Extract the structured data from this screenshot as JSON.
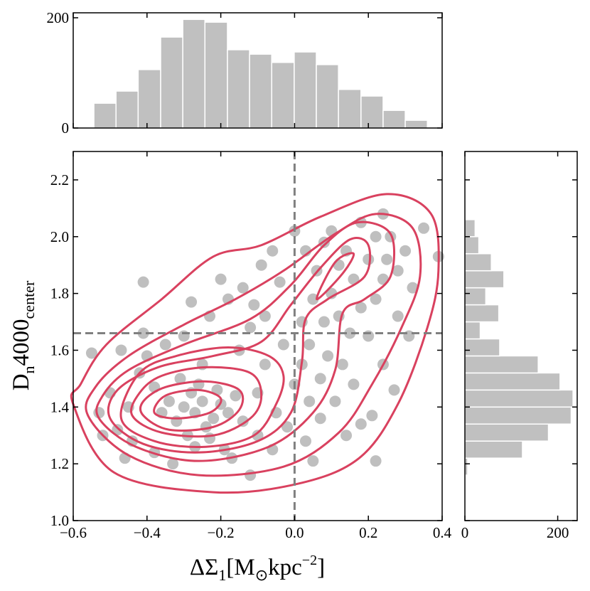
{
  "chart_data": {
    "type": "scatter",
    "xlabel": [
      {
        "text": "ΔΣ"
      },
      {
        "text": "1",
        "sub": true
      },
      {
        "text": "[M"
      },
      {
        "text": "⊙",
        "sub": true
      },
      {
        "text": "kpc"
      },
      {
        "text": "−2",
        "sup": true
      },
      {
        "text": "]"
      }
    ],
    "ylabel": [
      {
        "text": "D"
      },
      {
        "text": "n",
        "sub": true
      },
      {
        "text": "4000"
      },
      {
        "text": "center",
        "sub": true
      }
    ],
    "xlim": [
      -0.6,
      0.4
    ],
    "ylim": [
      1.0,
      2.3
    ],
    "xticks": [
      {
        "value": -0.6,
        "label": "−0.6"
      },
      {
        "value": -0.4,
        "label": "−0.4"
      },
      {
        "value": -0.2,
        "label": "−0.2"
      },
      {
        "value": 0,
        "label": "0.0"
      },
      0.2,
      0.4
    ],
    "yticks": [
      {
        "value": 1.0,
        "label": "1.0"
      },
      1.2,
      1.4,
      1.6,
      1.8,
      {
        "value": 2.0,
        "label": "2.0"
      },
      2.2
    ],
    "color": "#bfbfbf",
    "x": [
      -0.3,
      -0.27,
      -0.25,
      -0.22,
      -0.28,
      -0.32,
      -0.2,
      -0.24,
      -0.34,
      -0.18,
      -0.26,
      -0.29,
      -0.21,
      -0.36,
      -0.23,
      -0.31,
      -0.16,
      -0.38,
      -0.27,
      -0.14,
      -0.45,
      -0.48,
      -0.42,
      -0.5,
      -0.44,
      -0.53,
      -0.4,
      -0.47,
      -0.41,
      -0.38,
      -0.35,
      -0.55,
      -0.52,
      -0.46,
      -0.41,
      -0.33,
      -0.3,
      -0.25,
      -0.19,
      -0.17,
      -0.12,
      -0.1,
      -0.1,
      -0.08,
      -0.05,
      -0.03,
      -0.06,
      0.0,
      0.02,
      -0.02,
      0.04,
      0.05,
      0.03,
      0.07,
      -0.12,
      -0.08,
      -0.15,
      -0.18,
      -0.23,
      -0.28,
      -0.2,
      -0.14,
      -0.09,
      -0.04,
      -0.11,
      -0.06,
      0.0,
      0.03,
      0.06,
      0.08,
      0.1,
      0.12,
      0.14,
      0.16,
      0.18,
      0.2,
      0.22,
      0.24,
      0.26,
      0.25,
      0.28,
      0.3,
      0.35,
      0.39,
      0.05,
      0.08,
      0.1,
      0.12,
      0.15,
      0.18,
      0.2,
      0.22,
      0.24,
      0.28,
      0.31,
      0.32,
      0.02,
      0.04,
      0.09,
      0.13,
      0.16,
      0.18,
      0.21,
      0.22,
      0.27,
      0.24,
      0.11,
      0.07,
      0.14
    ],
    "y": [
      1.4,
      1.38,
      1.42,
      1.36,
      1.45,
      1.35,
      1.41,
      1.33,
      1.42,
      1.38,
      1.48,
      1.3,
      1.46,
      1.38,
      1.29,
      1.5,
      1.44,
      1.47,
      1.26,
      1.35,
      1.4,
      1.32,
      1.52,
      1.45,
      1.28,
      1.38,
      1.58,
      1.6,
      1.66,
      1.24,
      1.62,
      1.59,
      1.3,
      1.22,
      1.84,
      1.2,
      1.65,
      1.55,
      1.25,
      1.22,
      1.16,
      1.3,
      1.45,
      1.55,
      1.38,
      1.62,
      1.25,
      1.48,
      1.55,
      1.33,
      1.42,
      1.21,
      1.28,
      1.5,
      1.68,
      1.72,
      1.6,
      1.78,
      1.72,
      1.77,
      1.85,
      1.82,
      1.9,
      1.84,
      1.76,
      1.95,
      2.02,
      1.95,
      1.88,
      1.98,
      2.02,
      1.9,
      1.95,
      1.85,
      2.05,
      1.92,
      2.0,
      2.08,
      2.0,
      1.92,
      1.88,
      1.95,
      2.03,
      1.93,
      1.78,
      1.7,
      1.8,
      1.72,
      1.66,
      1.75,
      1.65,
      1.78,
      1.85,
      1.72,
      1.65,
      1.82,
      1.7,
      1.62,
      1.58,
      1.55,
      1.48,
      1.34,
      1.37,
      1.21,
      1.46,
      1.55,
      1.42,
      1.36,
      1.3
    ],
    "contour_color": "#d9415f",
    "contours": [
      {
        "x": [
          -0.6,
          -0.49,
          -0.22,
          0.01,
          0.175,
          0.28,
          0.36,
          0.39,
          0.37,
          0.25,
          0.07,
          -0.09,
          -0.22,
          -0.36,
          -0.51,
          -0.58
        ],
        "y": [
          1.41,
          1.17,
          1.1,
          1.13,
          1.22,
          1.41,
          1.68,
          1.88,
          2.08,
          2.15,
          2.07,
          1.97,
          1.93,
          1.78,
          1.62,
          1.48
        ]
      },
      {
        "x": [
          -0.56,
          -0.45,
          -0.26,
          -0.03,
          0.12,
          0.21,
          0.29,
          0.34,
          0.32,
          0.22,
          0.11,
          -0.03,
          -0.16,
          -0.3,
          -0.45,
          -0.54
        ],
        "y": [
          1.37,
          1.23,
          1.16,
          1.19,
          1.31,
          1.48,
          1.68,
          1.86,
          2.03,
          2.08,
          2.01,
          1.88,
          1.78,
          1.69,
          1.58,
          1.47
        ]
      },
      {
        "x": [
          -0.53,
          -0.43,
          -0.26,
          -0.07,
          0.05,
          0.11,
          0.13,
          0.19,
          0.26,
          0.26,
          0.17,
          0.08,
          -0.01,
          -0.12,
          -0.3,
          -0.45,
          -0.52
        ],
        "y": [
          1.36,
          1.26,
          1.21,
          1.26,
          1.38,
          1.53,
          1.73,
          1.78,
          1.86,
          2.01,
          2.05,
          1.97,
          1.83,
          1.71,
          1.62,
          1.53,
          1.44
        ]
      },
      {
        "x": [
          -0.5,
          -0.41,
          -0.26,
          -0.1,
          -0.01,
          0.02,
          0.03,
          0.09,
          0.19,
          0.2,
          0.15,
          0.07,
          -0.01,
          -0.09,
          -0.22,
          -0.37,
          -0.48
        ],
        "y": [
          1.36,
          1.27,
          1.24,
          1.28,
          1.38,
          1.56,
          1.71,
          1.78,
          1.86,
          1.97,
          1.99,
          1.89,
          1.76,
          1.63,
          1.58,
          1.54,
          1.46
        ]
      },
      {
        "x": [
          -0.47,
          -0.38,
          -0.24,
          -0.11,
          -0.05,
          -0.03,
          -0.07,
          -0.18,
          -0.32,
          -0.42
        ],
        "y": [
          1.36,
          1.28,
          1.26,
          1.3,
          1.41,
          1.51,
          1.58,
          1.61,
          1.58,
          1.52
        ]
      },
      {
        "x": [
          0.06,
          0.11,
          0.16,
          0.13
        ],
        "y": [
          1.78,
          1.91,
          1.94,
          1.87
        ]
      },
      {
        "x": [
          -0.44,
          -0.36,
          -0.22,
          -0.12,
          -0.09,
          -0.12,
          -0.24,
          -0.36,
          -0.42
        ],
        "y": [
          1.37,
          1.31,
          1.3,
          1.36,
          1.44,
          1.52,
          1.54,
          1.51,
          1.45
        ]
      },
      {
        "x": [
          -0.41,
          -0.34,
          -0.22,
          -0.15,
          -0.15,
          -0.24,
          -0.35,
          -0.41
        ],
        "y": [
          1.37,
          1.32,
          1.33,
          1.39,
          1.46,
          1.49,
          1.47,
          1.42
        ]
      },
      {
        "x": [
          -0.38,
          -0.32,
          -0.23,
          -0.2,
          -0.26,
          -0.35
        ],
        "y": [
          1.38,
          1.36,
          1.38,
          1.43,
          1.46,
          1.44
        ]
      }
    ],
    "vline": 0,
    "hline": 1.66,
    "line_color": "#808080",
    "hist_color": "#c0c0c0",
    "top_hist": {
      "bins": [
        -0.544,
        -0.484,
        -0.424,
        -0.363,
        -0.303,
        -0.243,
        -0.182,
        -0.122,
        -0.062,
        -0.001,
        0.059,
        0.119,
        0.18,
        0.24,
        0.3,
        0.36
      ],
      "counts": [
        45,
        67,
        106,
        165,
        197,
        192,
        142,
        134,
        119,
        138,
        115,
        70,
        58,
        32,
        14
      ],
      "ylim": [
        0,
        209
      ],
      "yticks": [
        0,
        200
      ]
    },
    "right_hist": {
      "bins": [
        1.16,
        1.22,
        1.28,
        1.34,
        1.4,
        1.46,
        1.52,
        1.58,
        1.64,
        1.7,
        1.76,
        1.82,
        1.88,
        1.94,
        2.0,
        2.06
      ],
      "counts": [
        6,
        124,
        180,
        229,
        233,
        205,
        158,
        75,
        33,
        73,
        45,
        84,
        57,
        30,
        22
      ],
      "xlim": [
        0,
        242
      ],
      "xticks": [
        0,
        200
      ]
    }
  }
}
